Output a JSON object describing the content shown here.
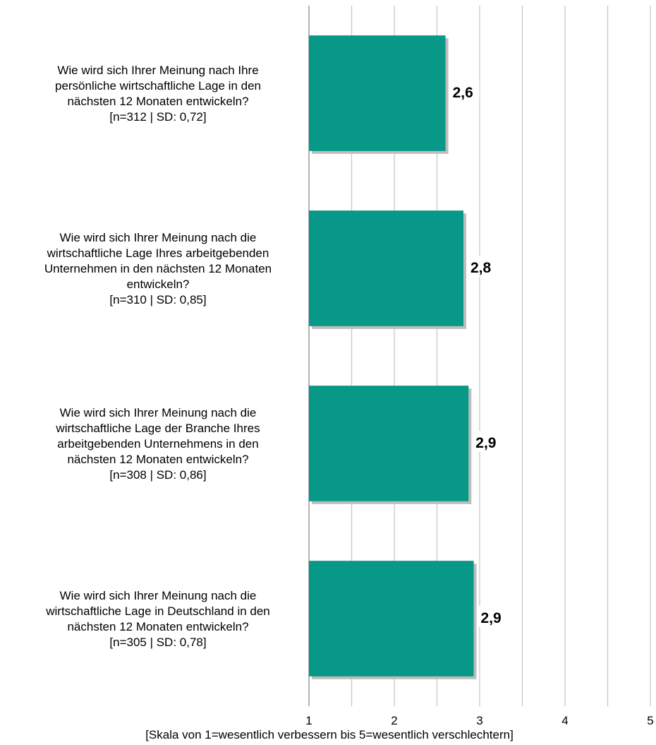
{
  "chart_data": {
    "type": "bar",
    "orientation": "horizontal",
    "categories": [
      [
        "Wie wird sich Ihrer Meinung nach Ihre",
        "persönliche wirtschaftliche Lage in den",
        "nächsten 12 Monaten entwickeln?",
        "[n=312 | SD: 0,72]"
      ],
      [
        "Wie wird sich Ihrer Meinung nach die",
        "wirtschaftliche Lage Ihres arbeitgebenden",
        "Unternehmen in den nächsten 12 Monaten",
        "entwickeln?",
        "[n=310 | SD: 0,85]"
      ],
      [
        "Wie wird sich Ihrer Meinung nach die",
        "wirtschaftliche Lage der Branche Ihres",
        "arbeitgebenden Unternehmens in den",
        "nächsten 12 Monaten entwickeln?",
        "[n=308 | SD: 0,86]"
      ],
      [
        "Wie wird sich Ihrer Meinung nach die",
        "wirtschaftliche Lage in Deutschland in den",
        "nächsten 12 Monaten entwickeln?",
        "[n=305 | SD: 0,78]"
      ]
    ],
    "values": [
      2.6,
      2.81,
      2.87,
      2.93
    ],
    "value_labels": [
      "2,6",
      "2,8",
      "2,9",
      "2,9"
    ],
    "xlim": [
      1,
      5
    ],
    "xticks": [
      1,
      2,
      3,
      4,
      5
    ],
    "xlabel": "[Skala von 1=wesentlich verbessern bis 5=wesentlich verschlechtern]",
    "grid": true,
    "bar_color": "#079887",
    "grid_color": "#c8c8c8"
  }
}
